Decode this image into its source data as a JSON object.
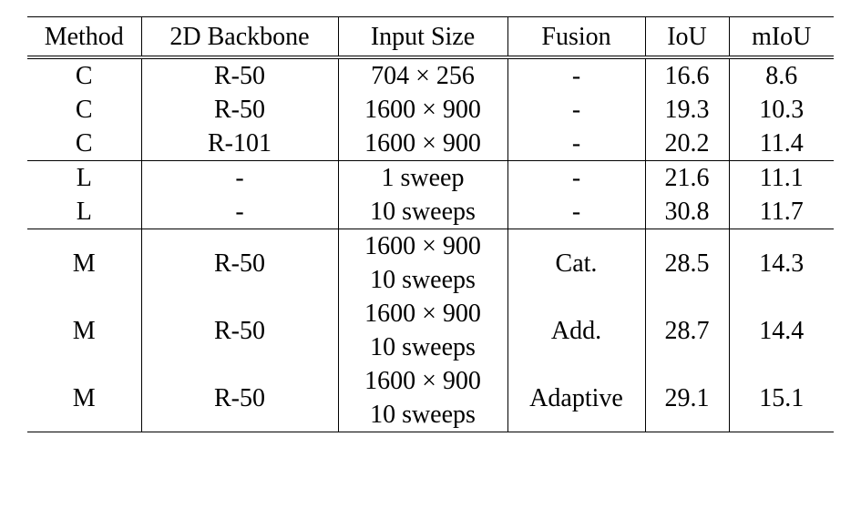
{
  "table": {
    "headers": [
      "Method",
      "2D Backbone",
      "Input Size",
      "Fusion",
      "IoU",
      "mIoU"
    ],
    "groups": [
      {
        "rows": [
          {
            "method": "C",
            "backbone": "R-50",
            "input": [
              "704 × 256"
            ],
            "fusion": "-",
            "iou": "16.6",
            "miou": "8.6"
          },
          {
            "method": "C",
            "backbone": "R-50",
            "input": [
              "1600 × 900"
            ],
            "fusion": "-",
            "iou": "19.3",
            "miou": "10.3"
          },
          {
            "method": "C",
            "backbone": "R-101",
            "input": [
              "1600 × 900"
            ],
            "fusion": "-",
            "iou": "20.2",
            "miou": "11.4"
          }
        ]
      },
      {
        "rows": [
          {
            "method": "L",
            "backbone": "-",
            "input": [
              "1 sweep"
            ],
            "fusion": "-",
            "iou": "21.6",
            "miou": "11.1"
          },
          {
            "method": "L",
            "backbone": "-",
            "input": [
              "10 sweeps"
            ],
            "fusion": "-",
            "iou": "30.8",
            "miou": "11.7"
          }
        ]
      },
      {
        "rows": [
          {
            "method": "M",
            "backbone": "R-50",
            "input": [
              "1600 × 900",
              "10 sweeps"
            ],
            "fusion": "Cat.",
            "iou": "28.5",
            "miou": "14.3"
          },
          {
            "method": "M",
            "backbone": "R-50",
            "input": [
              "1600 × 900",
              "10 sweeps"
            ],
            "fusion": "Add.",
            "iou": "28.7",
            "miou": "14.4"
          },
          {
            "method": "M",
            "backbone": "R-50",
            "input": [
              "1600 × 900",
              "10 sweeps"
            ],
            "fusion": "Adaptive",
            "iou": "29.1",
            "miou": "15.1"
          }
        ]
      }
    ]
  }
}
